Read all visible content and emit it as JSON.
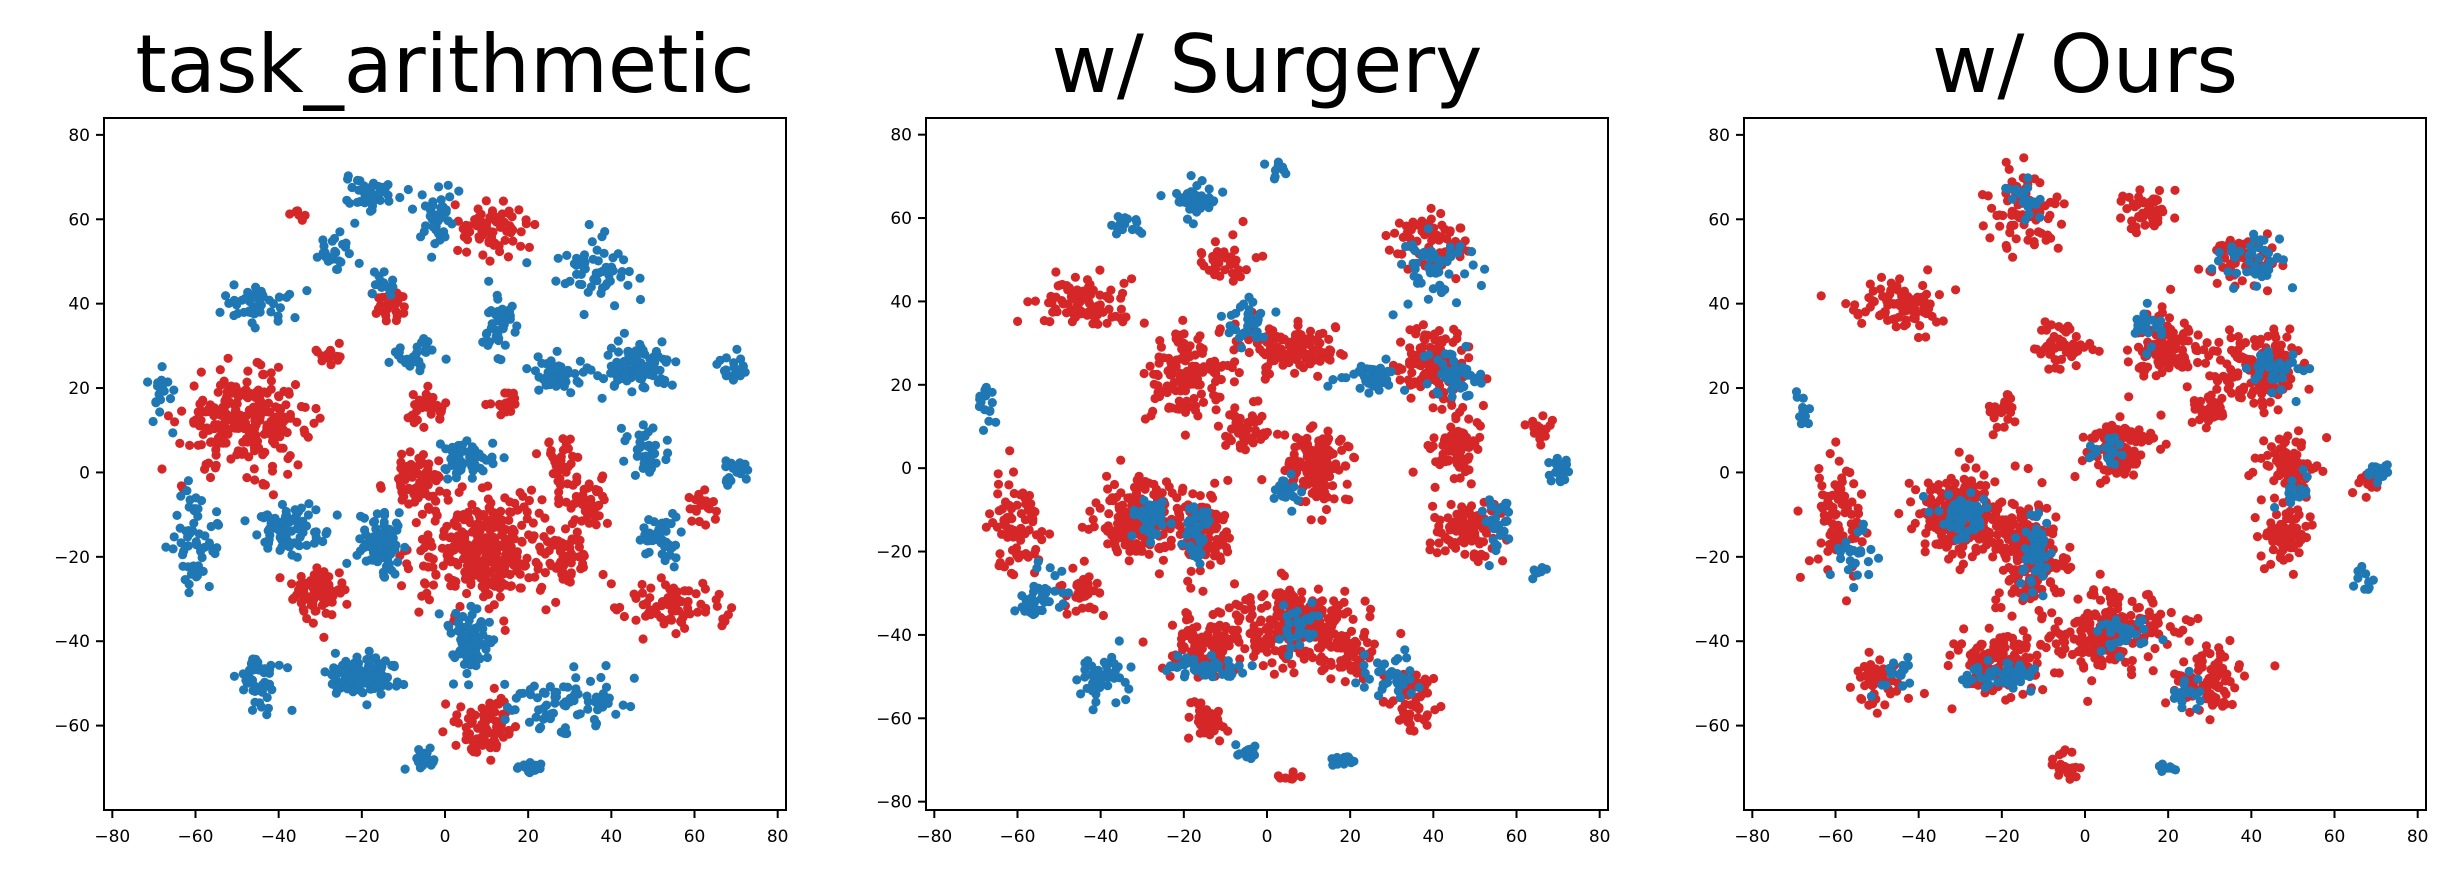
{
  "colors": {
    "red": "#d62728",
    "blue": "#1f77b4",
    "axis": "#000000"
  },
  "chart_data": [
    {
      "type": "scatter",
      "title": "task_arithmetic",
      "xlabel": "",
      "ylabel": "",
      "xlim": [
        -82,
        82
      ],
      "ylim": [
        -80,
        84
      ],
      "xticks": [
        -80,
        -60,
        -40,
        -20,
        0,
        20,
        40,
        60,
        80
      ],
      "yticks": [
        -60,
        -40,
        -20,
        0,
        20,
        40,
        60,
        80
      ],
      "grid": false,
      "legend": "none",
      "clusters": [
        {
          "color": "red",
          "cx": -48,
          "cy": 12,
          "rx": 14,
          "ry": 10,
          "n": 260
        },
        {
          "color": "red",
          "cx": 10,
          "cy": -18,
          "rx": 16,
          "ry": 12,
          "n": 320
        },
        {
          "color": "red",
          "cx": -7,
          "cy": -2,
          "rx": 6,
          "ry": 6,
          "n": 80
        },
        {
          "color": "red",
          "cx": -30,
          "cy": -28,
          "rx": 6,
          "ry": 6,
          "n": 80
        },
        {
          "color": "red",
          "cx": 10,
          "cy": -60,
          "rx": 6,
          "ry": 6,
          "n": 80
        },
        {
          "color": "red",
          "cx": 12,
          "cy": 58,
          "rx": 7,
          "ry": 6,
          "n": 70
        },
        {
          "color": "red",
          "cx": -13,
          "cy": 40,
          "rx": 4,
          "ry": 4,
          "n": 30
        },
        {
          "color": "red",
          "cx": -4,
          "cy": 15,
          "rx": 4,
          "ry": 4,
          "n": 35
        },
        {
          "color": "red",
          "cx": 28,
          "cy": 2,
          "rx": 4,
          "ry": 5,
          "n": 40
        },
        {
          "color": "red",
          "cx": 35,
          "cy": -8,
          "rx": 5,
          "ry": 5,
          "n": 45
        },
        {
          "color": "red",
          "cx": 55,
          "cy": -32,
          "rx": 12,
          "ry": 6,
          "n": 80
        },
        {
          "color": "red",
          "cx": 62,
          "cy": -8,
          "rx": 4,
          "ry": 4,
          "n": 20
        },
        {
          "color": "red",
          "cx": 30,
          "cy": -20,
          "rx": 6,
          "ry": 5,
          "n": 40
        },
        {
          "color": "red",
          "cx": -28,
          "cy": 28,
          "rx": 3,
          "ry": 3,
          "n": 15
        },
        {
          "color": "red",
          "cx": 14,
          "cy": 16,
          "rx": 4,
          "ry": 3,
          "n": 20
        },
        {
          "color": "red",
          "cx": -35,
          "cy": 62,
          "rx": 3,
          "ry": 3,
          "n": 8
        },
        {
          "color": "blue",
          "cx": -20,
          "cy": -48,
          "rx": 8,
          "ry": 4,
          "n": 120
        },
        {
          "color": "blue",
          "cx": 6,
          "cy": -40,
          "rx": 5,
          "ry": 7,
          "n": 90
        },
        {
          "color": "blue",
          "cx": -15,
          "cy": -17,
          "rx": 5,
          "ry": 7,
          "n": 90
        },
        {
          "color": "blue",
          "cx": -38,
          "cy": -14,
          "rx": 7,
          "ry": 5,
          "n": 80
        },
        {
          "color": "blue",
          "cx": 46,
          "cy": 25,
          "rx": 8,
          "ry": 5,
          "n": 100
        },
        {
          "color": "blue",
          "cx": 52,
          "cy": -15,
          "rx": 4,
          "ry": 5,
          "n": 40
        },
        {
          "color": "blue",
          "cx": 26,
          "cy": 23,
          "rx": 6,
          "ry": 4,
          "n": 50
        },
        {
          "color": "blue",
          "cx": 5,
          "cy": 3,
          "rx": 6,
          "ry": 4,
          "n": 50
        },
        {
          "color": "blue",
          "cx": 36,
          "cy": 48,
          "rx": 8,
          "ry": 6,
          "n": 60
        },
        {
          "color": "blue",
          "cx": -18,
          "cy": 66,
          "rx": 6,
          "ry": 5,
          "n": 40
        },
        {
          "color": "blue",
          "cx": -27,
          "cy": 52,
          "rx": 4,
          "ry": 4,
          "n": 25
        },
        {
          "color": "blue",
          "cx": -45,
          "cy": 40,
          "rx": 7,
          "ry": 4,
          "n": 50
        },
        {
          "color": "blue",
          "cx": -60,
          "cy": -15,
          "rx": 6,
          "ry": 10,
          "n": 60
        },
        {
          "color": "blue",
          "cx": -45,
          "cy": -50,
          "rx": 5,
          "ry": 6,
          "n": 45
        },
        {
          "color": "blue",
          "cx": 30,
          "cy": -55,
          "rx": 12,
          "ry": 7,
          "n": 80
        },
        {
          "color": "blue",
          "cx": -5,
          "cy": -68,
          "rx": 3,
          "ry": 3,
          "n": 20
        },
        {
          "color": "blue",
          "cx": 20,
          "cy": -70,
          "rx": 3,
          "ry": 2,
          "n": 15
        },
        {
          "color": "blue",
          "cx": 70,
          "cy": 0,
          "rx": 3,
          "ry": 3,
          "n": 20
        },
        {
          "color": "blue",
          "cx": 70,
          "cy": 25,
          "rx": 4,
          "ry": 3,
          "n": 20
        },
        {
          "color": "blue",
          "cx": -68,
          "cy": 18,
          "rx": 3,
          "ry": 6,
          "n": 20
        },
        {
          "color": "blue",
          "cx": 12,
          "cy": 35,
          "rx": 4,
          "ry": 6,
          "n": 40
        },
        {
          "color": "blue",
          "cx": -2,
          "cy": 60,
          "rx": 4,
          "ry": 8,
          "n": 40
        },
        {
          "color": "blue",
          "cx": -8,
          "cy": 28,
          "rx": 6,
          "ry": 3,
          "n": 30
        },
        {
          "color": "blue",
          "cx": 48,
          "cy": 5,
          "rx": 5,
          "ry": 5,
          "n": 35
        },
        {
          "color": "blue",
          "cx": -15,
          "cy": 45,
          "rx": 3,
          "ry": 3,
          "n": 15
        }
      ]
    },
    {
      "type": "scatter",
      "title": "w/ Surgery",
      "xlabel": "",
      "ylabel": "",
      "xlim": [
        -82,
        82
      ],
      "ylim": [
        -82,
        84
      ],
      "xticks": [
        -80,
        -60,
        -40,
        -20,
        0,
        20,
        40,
        60,
        80
      ],
      "yticks": [
        -80,
        -60,
        -40,
        -20,
        0,
        20,
        40,
        60,
        80
      ],
      "grid": false,
      "legend": "none",
      "clusters": [
        {
          "color": "red",
          "cx": -30,
          "cy": -12,
          "rx": 9,
          "ry": 8,
          "n": 220
        },
        {
          "color": "red",
          "cx": -15,
          "cy": -15,
          "rx": 5,
          "ry": 9,
          "n": 110
        },
        {
          "color": "red",
          "cx": 8,
          "cy": -38,
          "rx": 14,
          "ry": 9,
          "n": 240
        },
        {
          "color": "red",
          "cx": -15,
          "cy": -42,
          "rx": 8,
          "ry": 7,
          "n": 120
        },
        {
          "color": "red",
          "cx": 12,
          "cy": 0,
          "rx": 7,
          "ry": 8,
          "n": 140
        },
        {
          "color": "red",
          "cx": -20,
          "cy": 22,
          "rx": 8,
          "ry": 10,
          "n": 130
        },
        {
          "color": "red",
          "cx": 5,
          "cy": 28,
          "rx": 12,
          "ry": 6,
          "n": 120
        },
        {
          "color": "red",
          "cx": -45,
          "cy": 40,
          "rx": 10,
          "ry": 6,
          "n": 90
        },
        {
          "color": "red",
          "cx": -60,
          "cy": -15,
          "rx": 6,
          "ry": 12,
          "n": 80
        },
        {
          "color": "red",
          "cx": -5,
          "cy": 10,
          "rx": 5,
          "ry": 5,
          "n": 50
        },
        {
          "color": "red",
          "cx": 40,
          "cy": 25,
          "rx": 8,
          "ry": 7,
          "n": 120
        },
        {
          "color": "red",
          "cx": 45,
          "cy": 5,
          "rx": 6,
          "ry": 7,
          "n": 80
        },
        {
          "color": "red",
          "cx": 48,
          "cy": -15,
          "rx": 8,
          "ry": 6,
          "n": 100
        },
        {
          "color": "red",
          "cx": 35,
          "cy": -55,
          "rx": 6,
          "ry": 6,
          "n": 60
        },
        {
          "color": "red",
          "cx": 40,
          "cy": 55,
          "rx": 8,
          "ry": 6,
          "n": 70
        },
        {
          "color": "red",
          "cx": -15,
          "cy": -60,
          "rx": 5,
          "ry": 5,
          "n": 40
        },
        {
          "color": "red",
          "cx": -45,
          "cy": -30,
          "rx": 4,
          "ry": 5,
          "n": 35
        },
        {
          "color": "red",
          "cx": 20,
          "cy": -45,
          "rx": 5,
          "ry": 5,
          "n": 40
        },
        {
          "color": "red",
          "cx": -10,
          "cy": 50,
          "rx": 6,
          "ry": 4,
          "n": 40
        },
        {
          "color": "red",
          "cx": 65,
          "cy": 10,
          "rx": 3,
          "ry": 3,
          "n": 15
        },
        {
          "color": "red",
          "cx": 6,
          "cy": -74,
          "rx": 3,
          "ry": 1,
          "n": 10
        },
        {
          "color": "blue",
          "cx": -28,
          "cy": -12,
          "rx": 4,
          "ry": 4,
          "n": 40
        },
        {
          "color": "blue",
          "cx": -17,
          "cy": -15,
          "rx": 3,
          "ry": 7,
          "n": 40
        },
        {
          "color": "blue",
          "cx": -15,
          "cy": -48,
          "rx": 8,
          "ry": 3,
          "n": 50
        },
        {
          "color": "blue",
          "cx": -40,
          "cy": -50,
          "rx": 6,
          "ry": 5,
          "n": 45
        },
        {
          "color": "blue",
          "cx": -55,
          "cy": -30,
          "rx": 5,
          "ry": 6,
          "n": 40
        },
        {
          "color": "blue",
          "cx": -18,
          "cy": 65,
          "rx": 6,
          "ry": 4,
          "n": 40
        },
        {
          "color": "blue",
          "cx": -5,
          "cy": 35,
          "rx": 5,
          "ry": 5,
          "n": 35
        },
        {
          "color": "blue",
          "cx": 25,
          "cy": 22,
          "rx": 6,
          "ry": 4,
          "n": 40
        },
        {
          "color": "blue",
          "cx": 45,
          "cy": 22,
          "rx": 6,
          "ry": 5,
          "n": 45
        },
        {
          "color": "blue",
          "cx": 40,
          "cy": 48,
          "rx": 8,
          "ry": 6,
          "n": 50
        },
        {
          "color": "blue",
          "cx": 55,
          "cy": -12,
          "rx": 3,
          "ry": 6,
          "n": 30
        },
        {
          "color": "blue",
          "cx": 30,
          "cy": -50,
          "rx": 6,
          "ry": 5,
          "n": 40
        },
        {
          "color": "blue",
          "cx": 8,
          "cy": -38,
          "rx": 4,
          "ry": 5,
          "n": 30
        },
        {
          "color": "blue",
          "cx": 70,
          "cy": 0,
          "rx": 3,
          "ry": 3,
          "n": 20
        },
        {
          "color": "blue",
          "cx": -68,
          "cy": 15,
          "rx": 3,
          "ry": 5,
          "n": 15
        },
        {
          "color": "blue",
          "cx": 5,
          "cy": -5,
          "rx": 4,
          "ry": 3,
          "n": 20
        },
        {
          "color": "blue",
          "cx": -5,
          "cy": -68,
          "rx": 3,
          "ry": 2,
          "n": 15
        },
        {
          "color": "blue",
          "cx": 18,
          "cy": -70,
          "rx": 3,
          "ry": 2,
          "n": 15
        },
        {
          "color": "blue",
          "cx": -35,
          "cy": 58,
          "rx": 4,
          "ry": 3,
          "n": 15
        },
        {
          "color": "blue",
          "cx": 65,
          "cy": -25,
          "rx": 2,
          "ry": 2,
          "n": 8
        },
        {
          "color": "blue",
          "cx": 2,
          "cy": 72,
          "rx": 3,
          "ry": 3,
          "n": 10
        }
      ]
    },
    {
      "type": "scatter",
      "title": "w/ Ours",
      "xlabel": "",
      "ylabel": "",
      "xlim": [
        -82,
        82
      ],
      "ylim": [
        -80,
        84
      ],
      "xticks": [
        -80,
        -60,
        -40,
        -20,
        0,
        20,
        40,
        60,
        80
      ],
      "yticks": [
        -60,
        -40,
        -20,
        0,
        20,
        40,
        60,
        80
      ],
      "grid": false,
      "legend": "none",
      "clusters": [
        {
          "color": "red",
          "cx": -30,
          "cy": -10,
          "rx": 10,
          "ry": 9,
          "n": 220
        },
        {
          "color": "red",
          "cx": -13,
          "cy": -20,
          "rx": 8,
          "ry": 12,
          "n": 180
        },
        {
          "color": "red",
          "cx": 5,
          "cy": -38,
          "rx": 14,
          "ry": 9,
          "n": 220
        },
        {
          "color": "red",
          "cx": -20,
          "cy": -45,
          "rx": 10,
          "ry": 7,
          "n": 130
        },
        {
          "color": "red",
          "cx": 8,
          "cy": 5,
          "rx": 7,
          "ry": 7,
          "n": 120
        },
        {
          "color": "red",
          "cx": -45,
          "cy": 40,
          "rx": 10,
          "ry": 6,
          "n": 90
        },
        {
          "color": "red",
          "cx": 42,
          "cy": 25,
          "rx": 10,
          "ry": 8,
          "n": 150
        },
        {
          "color": "red",
          "cx": 48,
          "cy": 2,
          "rx": 6,
          "ry": 7,
          "n": 80
        },
        {
          "color": "red",
          "cx": 48,
          "cy": -15,
          "rx": 6,
          "ry": 6,
          "n": 80
        },
        {
          "color": "red",
          "cx": 20,
          "cy": 30,
          "rx": 8,
          "ry": 8,
          "n": 100
        },
        {
          "color": "red",
          "cx": -60,
          "cy": -12,
          "rx": 6,
          "ry": 12,
          "n": 80
        },
        {
          "color": "red",
          "cx": -50,
          "cy": -50,
          "rx": 5,
          "ry": 6,
          "n": 50
        },
        {
          "color": "red",
          "cx": 30,
          "cy": -50,
          "rx": 8,
          "ry": 8,
          "n": 80
        },
        {
          "color": "red",
          "cx": -15,
          "cy": 62,
          "rx": 8,
          "ry": 8,
          "n": 80
        },
        {
          "color": "red",
          "cx": 15,
          "cy": 62,
          "rx": 6,
          "ry": 6,
          "n": 50
        },
        {
          "color": "red",
          "cx": -5,
          "cy": 30,
          "rx": 6,
          "ry": 5,
          "n": 50
        },
        {
          "color": "red",
          "cx": 30,
          "cy": 15,
          "rx": 4,
          "ry": 4,
          "n": 40
        },
        {
          "color": "red",
          "cx": 38,
          "cy": 50,
          "rx": 8,
          "ry": 6,
          "n": 60
        },
        {
          "color": "red",
          "cx": -20,
          "cy": 15,
          "rx": 4,
          "ry": 4,
          "n": 25
        },
        {
          "color": "red",
          "cx": -5,
          "cy": -70,
          "rx": 3,
          "ry": 3,
          "n": 20
        },
        {
          "color": "red",
          "cx": 68,
          "cy": -2,
          "rx": 3,
          "ry": 3,
          "n": 15
        },
        {
          "color": "blue",
          "cx": -30,
          "cy": -10,
          "rx": 5,
          "ry": 5,
          "n": 50
        },
        {
          "color": "blue",
          "cx": -12,
          "cy": -20,
          "rx": 3,
          "ry": 8,
          "n": 50
        },
        {
          "color": "blue",
          "cx": -20,
          "cy": -48,
          "rx": 9,
          "ry": 3,
          "n": 50
        },
        {
          "color": "blue",
          "cx": 10,
          "cy": -38,
          "rx": 6,
          "ry": 5,
          "n": 30
        },
        {
          "color": "blue",
          "cx": 40,
          "cy": 50,
          "rx": 7,
          "ry": 5,
          "n": 40
        },
        {
          "color": "blue",
          "cx": 45,
          "cy": 25,
          "rx": 6,
          "ry": 4,
          "n": 35
        },
        {
          "color": "blue",
          "cx": 25,
          "cy": -52,
          "rx": 4,
          "ry": 4,
          "n": 20
        },
        {
          "color": "blue",
          "cx": -55,
          "cy": -20,
          "rx": 4,
          "ry": 6,
          "n": 25
        },
        {
          "color": "blue",
          "cx": -45,
          "cy": -48,
          "rx": 4,
          "ry": 4,
          "n": 20
        },
        {
          "color": "blue",
          "cx": -15,
          "cy": 65,
          "rx": 5,
          "ry": 4,
          "n": 20
        },
        {
          "color": "blue",
          "cx": 5,
          "cy": 5,
          "rx": 4,
          "ry": 3,
          "n": 20
        },
        {
          "color": "blue",
          "cx": 70,
          "cy": 0,
          "rx": 3,
          "ry": 3,
          "n": 15
        },
        {
          "color": "blue",
          "cx": 67,
          "cy": -25,
          "rx": 2,
          "ry": 3,
          "n": 10
        },
        {
          "color": "blue",
          "cx": -68,
          "cy": 15,
          "rx": 3,
          "ry": 4,
          "n": 10
        },
        {
          "color": "blue",
          "cx": 15,
          "cy": 35,
          "rx": 4,
          "ry": 4,
          "n": 20
        },
        {
          "color": "blue",
          "cx": 50,
          "cy": -5,
          "rx": 3,
          "ry": 4,
          "n": 15
        },
        {
          "color": "blue",
          "cx": 20,
          "cy": -70,
          "rx": 2,
          "ry": 2,
          "n": 8
        }
      ]
    }
  ]
}
